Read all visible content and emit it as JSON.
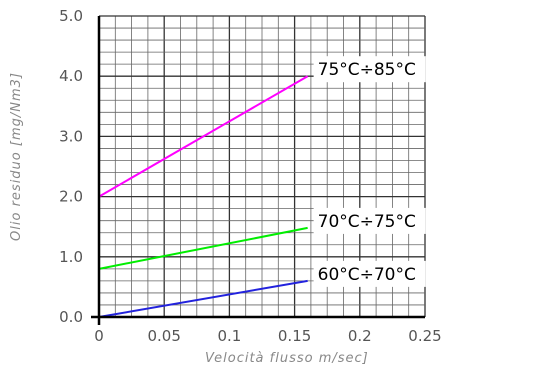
{
  "chart_data": {
    "type": "line",
    "xlabel": "Velocità flusso m/sec]",
    "ylabel": "Olio residuo [mg/Nm3]",
    "xlim": [
      0,
      0.25
    ],
    "ylim": [
      0,
      5.0
    ],
    "x_ticks": [
      "0",
      "0.05",
      "0.1",
      "0.15",
      "0.2",
      "0.25"
    ],
    "y_ticks": [
      "0.0",
      "1.0",
      "2.0",
      "3.0",
      "4.0",
      "5.0"
    ],
    "grid": true,
    "series": [
      {
        "name": "75°C÷85°C",
        "color": "#ff00ff",
        "x": [
          0,
          0.16
        ],
        "y": [
          2.0,
          4.0
        ]
      },
      {
        "name": "70°C÷75°C",
        "color": "#00ee00",
        "x": [
          0,
          0.16
        ],
        "y": [
          0.8,
          1.48
        ]
      },
      {
        "name": "60°C÷70°C",
        "color": "#2222dd",
        "x": [
          0,
          0.16
        ],
        "y": [
          0.0,
          0.6
        ]
      }
    ]
  }
}
